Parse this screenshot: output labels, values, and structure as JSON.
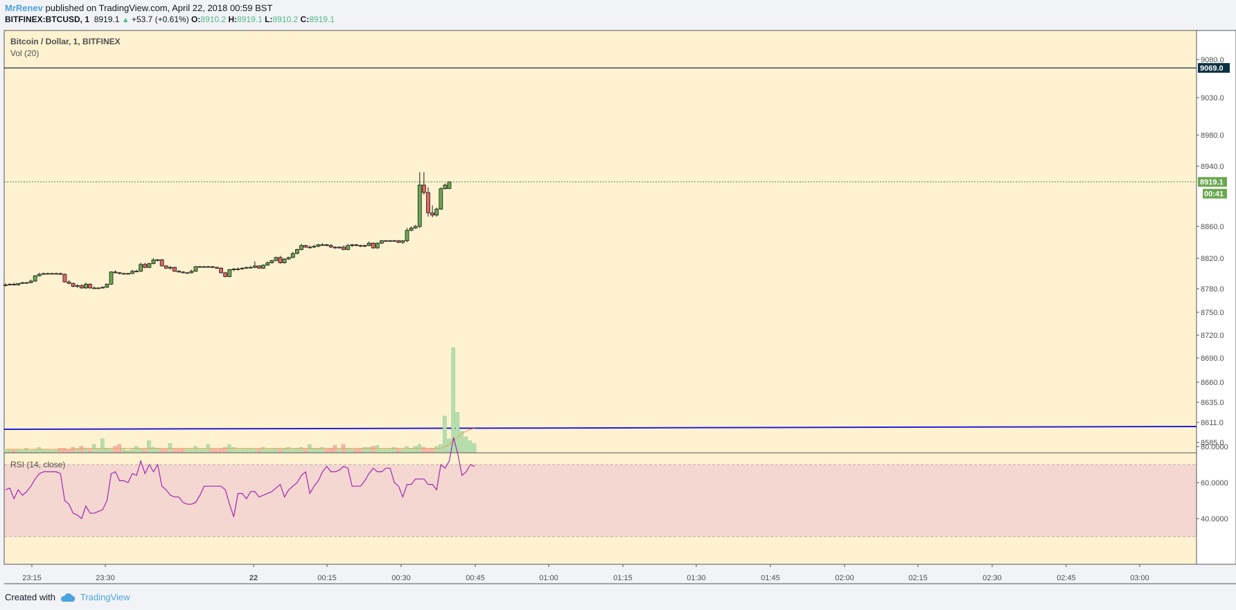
{
  "header": {
    "author": "MrRenev",
    "published": " published on TradingView.com, April 22, 2018 00:59 BST",
    "symbol": "BITFINEX:BTCUSD, 1",
    "last": "8919.1",
    "up_arrow": "▲",
    "change": "+53.7 (+0.61%)",
    "o_label": "O:",
    "o_value": "8910.2",
    "h_label": "H:",
    "h_value": "8919.1",
    "l_label": "L:",
    "l_value": "8910.2",
    "c_label": "C:",
    "c_value": "8919.1"
  },
  "legend": {
    "title": "Bitcoin / Dollar, 1, BITFINEX",
    "volume": "Vol (20)",
    "rsi": "RSI (14, close)"
  },
  "footer": {
    "created_with": "Created with",
    "brand": "TradingView"
  },
  "colors": {
    "background": "#fff2d1",
    "up": "#6aa84f",
    "down": "#e06666",
    "rsi_line": "#9c27b0",
    "rsi_band": "#f5d7d2",
    "hline_blue": "#1f1fd8",
    "hline_dark": "#0b3142"
  },
  "chart_data": [
    {
      "type": "candlestick",
      "title": "Bitcoin / Dollar, 1, BITFINEX",
      "interval_minutes": 1,
      "x_tick_labels": [
        "23:15",
        "23:30",
        "22",
        "00:15",
        "00:30",
        "00:45",
        "01:00",
        "01:15",
        "01:30",
        "01:45",
        "02:00",
        "02:15",
        "02:30",
        "02:45",
        "03:00"
      ],
      "y_tick_labels": [
        "9080.0",
        "9030.0",
        "8980.0",
        "8940.0",
        "8860.0",
        "8820.0",
        "8780.0",
        "8750.0",
        "8720.0",
        "8690.0",
        "8660.0",
        "8635.0",
        "8611.0",
        "8585.0"
      ],
      "y_scale": "log",
      "price_labels": {
        "horizontal_line": "9069.0",
        "last_price": "8919.1",
        "countdown": "00:41"
      },
      "candles": [
        {
          "t": "23:11",
          "o": 8785,
          "h": 8787,
          "l": 8783,
          "c": 8785
        },
        {
          "t": "23:12",
          "o": 8785,
          "h": 8787,
          "l": 8784,
          "c": 8786
        },
        {
          "t": "23:13",
          "o": 8786,
          "h": 8788,
          "l": 8784,
          "c": 8785
        },
        {
          "t": "23:14",
          "o": 8785,
          "h": 8787,
          "l": 8784,
          "c": 8787
        },
        {
          "t": "23:15",
          "o": 8787,
          "h": 8789,
          "l": 8786,
          "c": 8788
        },
        {
          "t": "23:16",
          "o": 8788,
          "h": 8789,
          "l": 8787,
          "c": 8788
        },
        {
          "t": "23:17",
          "o": 8788,
          "h": 8792,
          "l": 8787,
          "c": 8790
        },
        {
          "t": "23:18",
          "o": 8790,
          "h": 8798,
          "l": 8789,
          "c": 8797
        },
        {
          "t": "23:19",
          "o": 8797,
          "h": 8801,
          "l": 8796,
          "c": 8799
        },
        {
          "t": "23:20",
          "o": 8799,
          "h": 8801,
          "l": 8798,
          "c": 8800
        },
        {
          "t": "23:21",
          "o": 8800,
          "h": 8801,
          "l": 8799,
          "c": 8800
        },
        {
          "t": "23:22",
          "o": 8800,
          "h": 8801,
          "l": 8799,
          "c": 8800
        },
        {
          "t": "23:23",
          "o": 8800,
          "h": 8801,
          "l": 8799,
          "c": 8800
        },
        {
          "t": "23:24",
          "o": 8800,
          "h": 8801,
          "l": 8798,
          "c": 8799
        },
        {
          "t": "23:25",
          "o": 8799,
          "h": 8800,
          "l": 8788,
          "c": 8789
        },
        {
          "t": "23:26",
          "o": 8789,
          "h": 8791,
          "l": 8786,
          "c": 8787
        },
        {
          "t": "23:27",
          "o": 8787,
          "h": 8788,
          "l": 8782,
          "c": 8783
        },
        {
          "t": "23:28",
          "o": 8783,
          "h": 8786,
          "l": 8781,
          "c": 8784
        },
        {
          "t": "23:29",
          "o": 8784,
          "h": 8786,
          "l": 8780,
          "c": 8781
        },
        {
          "t": "23:30",
          "o": 8781,
          "h": 8788,
          "l": 8780,
          "c": 8786
        },
        {
          "t": "23:31",
          "o": 8786,
          "h": 8787,
          "l": 8780,
          "c": 8781
        },
        {
          "t": "23:32",
          "o": 8781,
          "h": 8783,
          "l": 8780,
          "c": 8781
        },
        {
          "t": "23:33",
          "o": 8781,
          "h": 8782,
          "l": 8780,
          "c": 8781
        },
        {
          "t": "23:34",
          "o": 8781,
          "h": 8783,
          "l": 8780,
          "c": 8782
        },
        {
          "t": "23:35",
          "o": 8782,
          "h": 8787,
          "l": 8781,
          "c": 8786
        },
        {
          "t": "23:36",
          "o": 8786,
          "h": 8803,
          "l": 8785,
          "c": 8802
        },
        {
          "t": "23:37",
          "o": 8802,
          "h": 8804,
          "l": 8800,
          "c": 8801
        },
        {
          "t": "23:38",
          "o": 8801,
          "h": 8802,
          "l": 8799,
          "c": 8800
        },
        {
          "t": "23:39",
          "o": 8800,
          "h": 8801,
          "l": 8799,
          "c": 8800
        },
        {
          "t": "23:40",
          "o": 8800,
          "h": 8801,
          "l": 8799,
          "c": 8800
        },
        {
          "t": "23:41",
          "o": 8800,
          "h": 8805,
          "l": 8799,
          "c": 8803
        },
        {
          "t": "23:42",
          "o": 8803,
          "h": 8805,
          "l": 8802,
          "c": 8803
        },
        {
          "t": "23:43",
          "o": 8803,
          "h": 8814,
          "l": 8802,
          "c": 8812
        },
        {
          "t": "23:44",
          "o": 8812,
          "h": 8814,
          "l": 8807,
          "c": 8808
        },
        {
          "t": "23:45",
          "o": 8808,
          "h": 8814,
          "l": 8807,
          "c": 8813
        },
        {
          "t": "23:46",
          "o": 8813,
          "h": 8820,
          "l": 8812,
          "c": 8818
        },
        {
          "t": "23:47",
          "o": 8818,
          "h": 8819,
          "l": 8816,
          "c": 8818
        },
        {
          "t": "23:48",
          "o": 8818,
          "h": 8819,
          "l": 8809,
          "c": 8810
        },
        {
          "t": "23:49",
          "o": 8810,
          "h": 8811,
          "l": 8806,
          "c": 8807
        },
        {
          "t": "23:50",
          "o": 8807,
          "h": 8810,
          "l": 8805,
          "c": 8808
        },
        {
          "t": "23:51",
          "o": 8808,
          "h": 8809,
          "l": 8802,
          "c": 8803
        },
        {
          "t": "23:52",
          "o": 8803,
          "h": 8804,
          "l": 8801,
          "c": 8802
        },
        {
          "t": "23:53",
          "o": 8802,
          "h": 8803,
          "l": 8800,
          "c": 8801
        },
        {
          "t": "23:54",
          "o": 8801,
          "h": 8802,
          "l": 8800,
          "c": 8801
        },
        {
          "t": "23:55",
          "o": 8801,
          "h": 8805,
          "l": 8800,
          "c": 8803
        },
        {
          "t": "23:56",
          "o": 8803,
          "h": 8810,
          "l": 8802,
          "c": 8809
        },
        {
          "t": "23:57",
          "o": 8809,
          "h": 8810,
          "l": 8808,
          "c": 8809
        },
        {
          "t": "23:58",
          "o": 8809,
          "h": 8810,
          "l": 8808,
          "c": 8809
        },
        {
          "t": "23:59",
          "o": 8809,
          "h": 8810,
          "l": 8808,
          "c": 8809
        },
        {
          "t": "00:00",
          "o": 8809,
          "h": 8810,
          "l": 8807,
          "c": 8808
        },
        {
          "t": "00:01",
          "o": 8808,
          "h": 8809,
          "l": 8806,
          "c": 8807
        },
        {
          "t": "00:02",
          "o": 8807,
          "h": 8808,
          "l": 8800,
          "c": 8801
        },
        {
          "t": "00:03",
          "o": 8801,
          "h": 8802,
          "l": 8795,
          "c": 8796
        },
        {
          "t": "00:04",
          "o": 8796,
          "h": 8806,
          "l": 8795,
          "c": 8805
        },
        {
          "t": "00:05",
          "o": 8805,
          "h": 8807,
          "l": 8803,
          "c": 8806
        },
        {
          "t": "00:06",
          "o": 8806,
          "h": 8808,
          "l": 8804,
          "c": 8806
        },
        {
          "t": "00:07",
          "o": 8806,
          "h": 8808,
          "l": 8805,
          "c": 8807
        },
        {
          "t": "00:08",
          "o": 8807,
          "h": 8809,
          "l": 8806,
          "c": 8808
        },
        {
          "t": "00:09",
          "o": 8808,
          "h": 8810,
          "l": 8807,
          "c": 8808
        },
        {
          "t": "00:10",
          "o": 8808,
          "h": 8816,
          "l": 8807,
          "c": 8810
        },
        {
          "t": "00:11",
          "o": 8810,
          "h": 8811,
          "l": 8806,
          "c": 8807
        },
        {
          "t": "00:12",
          "o": 8807,
          "h": 8812,
          "l": 8806,
          "c": 8811
        },
        {
          "t": "00:13",
          "o": 8811,
          "h": 8816,
          "l": 8810,
          "c": 8814
        },
        {
          "t": "00:14",
          "o": 8814,
          "h": 8818,
          "l": 8813,
          "c": 8817
        },
        {
          "t": "00:15",
          "o": 8817,
          "h": 8822,
          "l": 8816,
          "c": 8821
        },
        {
          "t": "00:16",
          "o": 8821,
          "h": 8823,
          "l": 8813,
          "c": 8814
        },
        {
          "t": "00:17",
          "o": 8814,
          "h": 8820,
          "l": 8813,
          "c": 8819
        },
        {
          "t": "00:18",
          "o": 8819,
          "h": 8822,
          "l": 8818,
          "c": 8821
        },
        {
          "t": "00:19",
          "o": 8821,
          "h": 8828,
          "l": 8820,
          "c": 8826
        },
        {
          "t": "00:20",
          "o": 8826,
          "h": 8832,
          "l": 8825,
          "c": 8831
        },
        {
          "t": "00:21",
          "o": 8831,
          "h": 8838,
          "l": 8830,
          "c": 8836
        },
        {
          "t": "00:22",
          "o": 8836,
          "h": 8837,
          "l": 8833,
          "c": 8834
        },
        {
          "t": "00:23",
          "o": 8834,
          "h": 8836,
          "l": 8832,
          "c": 8834
        },
        {
          "t": "00:24",
          "o": 8834,
          "h": 8837,
          "l": 8833,
          "c": 8835
        },
        {
          "t": "00:25",
          "o": 8835,
          "h": 8838,
          "l": 8834,
          "c": 8837
        },
        {
          "t": "00:26",
          "o": 8837,
          "h": 8839,
          "l": 8836,
          "c": 8837
        },
        {
          "t": "00:27",
          "o": 8837,
          "h": 8838,
          "l": 8835,
          "c": 8836
        },
        {
          "t": "00:28",
          "o": 8836,
          "h": 8838,
          "l": 8833,
          "c": 8834
        },
        {
          "t": "00:29",
          "o": 8834,
          "h": 8835,
          "l": 8832,
          "c": 8833
        },
        {
          "t": "00:30",
          "o": 8833,
          "h": 8835,
          "l": 8832,
          "c": 8834
        },
        {
          "t": "00:31",
          "o": 8834,
          "h": 8836,
          "l": 8830,
          "c": 8831
        },
        {
          "t": "00:32",
          "o": 8831,
          "h": 8838,
          "l": 8830,
          "c": 8836
        },
        {
          "t": "00:33",
          "o": 8836,
          "h": 8838,
          "l": 8834,
          "c": 8837
        },
        {
          "t": "00:34",
          "o": 8837,
          "h": 8838,
          "l": 8835,
          "c": 8836
        },
        {
          "t": "00:35",
          "o": 8836,
          "h": 8837,
          "l": 8834,
          "c": 8835
        },
        {
          "t": "00:36",
          "o": 8835,
          "h": 8837,
          "l": 8834,
          "c": 8836
        },
        {
          "t": "00:37",
          "o": 8836,
          "h": 8841,
          "l": 8835,
          "c": 8839
        },
        {
          "t": "00:38",
          "o": 8839,
          "h": 8840,
          "l": 8832,
          "c": 8833
        },
        {
          "t": "00:39",
          "o": 8833,
          "h": 8840,
          "l": 8832,
          "c": 8839
        },
        {
          "t": "00:40",
          "o": 8839,
          "h": 8843,
          "l": 8838,
          "c": 8842
        },
        {
          "t": "00:41",
          "o": 8842,
          "h": 8843,
          "l": 8841,
          "c": 8842
        },
        {
          "t": "00:42",
          "o": 8842,
          "h": 8843,
          "l": 8841,
          "c": 8842
        },
        {
          "t": "00:43",
          "o": 8842,
          "h": 8843,
          "l": 8841,
          "c": 8842
        },
        {
          "t": "00:44",
          "o": 8842,
          "h": 8843,
          "l": 8839,
          "c": 8840
        },
        {
          "t": "00:45",
          "o": 8840,
          "h": 8843,
          "l": 8838,
          "c": 8842
        },
        {
          "t": "00:46",
          "o": 8842,
          "h": 8858,
          "l": 8840,
          "c": 8855
        },
        {
          "t": "00:47",
          "o": 8855,
          "h": 8860,
          "l": 8854,
          "c": 8858
        },
        {
          "t": "00:48",
          "o": 8858,
          "h": 8862,
          "l": 8857,
          "c": 8860
        },
        {
          "t": "00:49",
          "o": 8860,
          "h": 8932,
          "l": 8858,
          "c": 8915
        },
        {
          "t": "00:50",
          "o": 8915,
          "h": 8932,
          "l": 8902,
          "c": 8905
        },
        {
          "t": "00:51",
          "o": 8905,
          "h": 8912,
          "l": 8873,
          "c": 8878
        },
        {
          "t": "00:52",
          "o": 8878,
          "h": 8888,
          "l": 8872,
          "c": 8875
        },
        {
          "t": "00:53",
          "o": 8875,
          "h": 8885,
          "l": 8873,
          "c": 8883
        },
        {
          "t": "00:54",
          "o": 8883,
          "h": 8912,
          "l": 8882,
          "c": 8910
        },
        {
          "t": "00:55",
          "o": 8910,
          "h": 8917,
          "l": 8909,
          "c": 8915
        },
        {
          "t": "00:56",
          "o": 8910.2,
          "h": 8919.1,
          "l": 8910.2,
          "c": 8919.1
        }
      ],
      "horizontal_lines": [
        9069.0,
        8605.0
      ]
    },
    {
      "type": "bar",
      "title": "Vol (20)",
      "values": [
        2,
        3,
        2,
        3,
        2,
        4,
        2,
        3,
        5,
        3,
        3,
        2,
        3,
        4,
        4,
        3,
        5,
        4,
        6,
        4,
        3,
        8,
        3,
        14,
        4,
        3,
        6,
        8,
        3,
        2,
        3,
        6,
        4,
        3,
        12,
        5,
        4,
        3,
        3,
        9,
        3,
        3,
        4,
        3,
        3,
        6,
        3,
        3,
        8,
        3,
        3,
        4,
        5,
        8,
        5,
        3,
        3,
        3,
        4,
        3,
        3,
        5,
        3,
        3,
        4,
        3,
        4,
        5,
        3,
        4,
        5,
        3,
        8,
        4,
        4,
        5,
        3,
        4,
        7,
        3,
        8,
        4,
        3,
        3,
        4,
        5,
        5,
        6,
        7,
        3,
        3,
        4,
        5,
        3,
        3,
        6,
        4,
        6,
        8,
        5,
        3,
        4,
        6,
        8,
        38,
        14,
        110,
        42,
        22,
        16,
        12,
        9
      ],
      "ma_values": [
        3,
        3,
        3,
        3,
        3,
        3,
        3,
        3,
        3,
        3,
        3,
        3,
        3,
        3,
        3,
        3,
        3,
        3,
        4,
        4,
        4,
        4,
        4,
        4,
        4,
        4,
        4,
        4,
        4,
        4,
        4,
        4,
        4,
        4,
        4,
        4,
        4,
        4,
        4,
        4,
        4,
        4,
        4,
        4,
        4,
        4,
        4,
        4,
        4,
        4,
        4,
        4,
        4,
        4,
        4,
        4,
        4,
        4,
        4,
        4,
        4,
        4,
        4,
        4,
        4,
        4,
        4,
        4,
        4,
        4,
        4,
        4,
        4,
        4,
        4,
        4,
        4,
        4,
        4,
        4,
        4,
        4,
        4,
        4,
        4,
        4,
        4,
        4,
        4,
        4,
        4,
        4,
        4,
        4,
        4,
        4,
        4,
        4,
        4,
        4,
        4,
        4,
        4,
        4,
        6,
        8,
        12,
        16,
        20,
        22,
        24,
        25
      ]
    },
    {
      "type": "line",
      "title": "RSI (14, close)",
      "y_tick_labels": [
        "80.0000",
        "60.0000",
        "40.0000"
      ],
      "band": [
        30,
        70
      ],
      "values": [
        56,
        57,
        51,
        56,
        53,
        55,
        58,
        62,
        65,
        66,
        66,
        66,
        66,
        65,
        50,
        48,
        43,
        42,
        40,
        47,
        43,
        43,
        44,
        45,
        50,
        65,
        66,
        61,
        61,
        60,
        65,
        64,
        72,
        65,
        70,
        66,
        70,
        58,
        56,
        53,
        52,
        52,
        49,
        48,
        48,
        49,
        53,
        58,
        58,
        58,
        58,
        58,
        56,
        48,
        41,
        54,
        54,
        51,
        55,
        55,
        52,
        53,
        54,
        55,
        57,
        59,
        52,
        56,
        58,
        60,
        64,
        66,
        54,
        58,
        61,
        66,
        69,
        66,
        66,
        67,
        69,
        68,
        58,
        58,
        58,
        61,
        65,
        68,
        66,
        66,
        68,
        68,
        60,
        58,
        52,
        59,
        59,
        62,
        62,
        62,
        59,
        59,
        56,
        70,
        68,
        72,
        85,
        76,
        64,
        66,
        70,
        69
      ]
    }
  ]
}
